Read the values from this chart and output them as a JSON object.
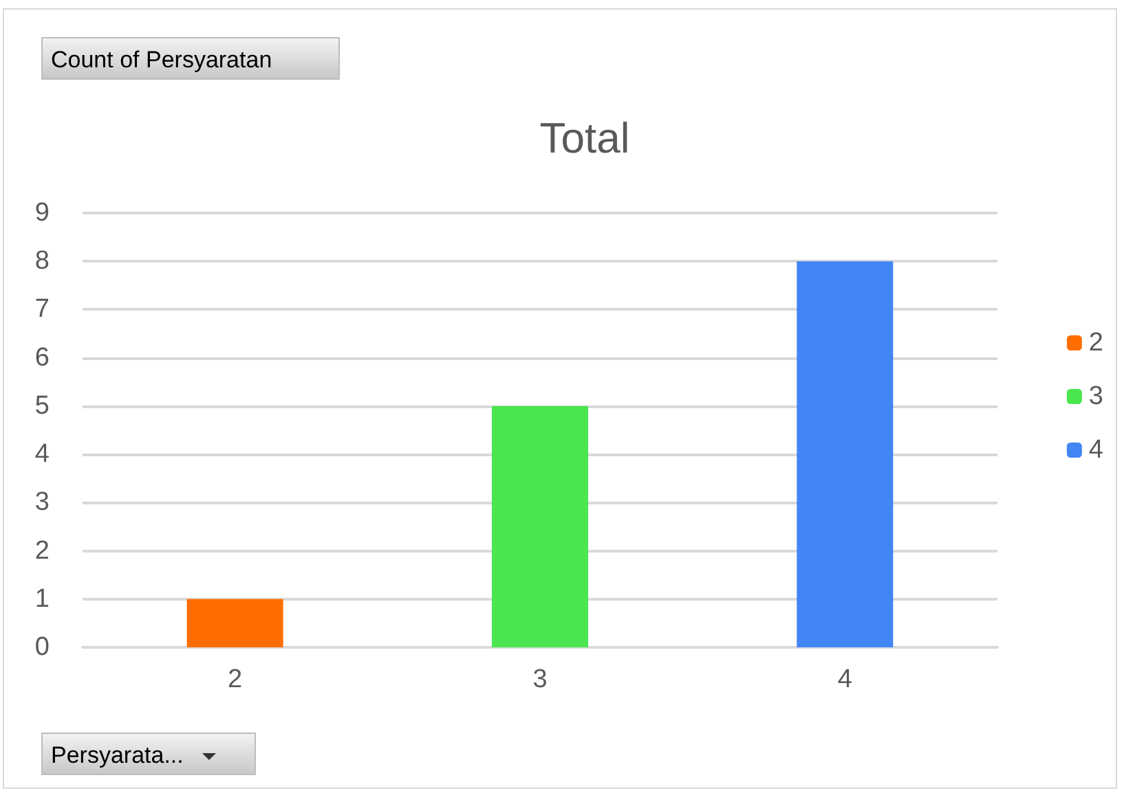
{
  "chart_data": {
    "type": "bar",
    "title": "Total",
    "categories": [
      "2",
      "3",
      "4"
    ],
    "series": [
      {
        "name": "2",
        "color": "#ff6d01",
        "values": [
          1,
          null,
          null
        ]
      },
      {
        "name": "3",
        "color": "#4be64f",
        "values": [
          null,
          5,
          null
        ]
      },
      {
        "name": "4",
        "color": "#4285f4",
        "values": [
          null,
          null,
          8
        ]
      }
    ],
    "ylim": [
      0,
      9
    ],
    "yticks": [
      0,
      1,
      2,
      3,
      4,
      5,
      6,
      7,
      8,
      9
    ],
    "grid": "y",
    "legend": "right",
    "annotations": [
      "Count of Persyaratan",
      "Persyarata..."
    ]
  }
}
